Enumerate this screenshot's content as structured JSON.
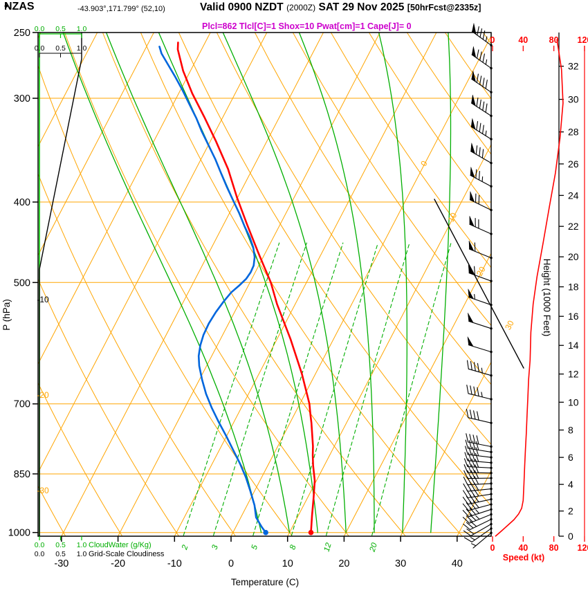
{
  "header": {
    "bullet": "•",
    "station": "NZAS",
    "coords": "-43.903°,171.799° (52,10)",
    "valid_prefix": "Valid 0900 NZDT",
    "valid_z": "(2000Z)",
    "valid_date": "SAT 29 Nov 2025",
    "fcst": "[50hrFcst@2335z]",
    "params": "Plcl=862 Tlcl[C]=1 Shox=10 Pwat[cm]=1 Cape[J]= 0"
  },
  "colors": {
    "orange": "#FFA500",
    "green": "#00AE00",
    "bright_green": "#00C800",
    "red": "#FF0000",
    "blue": "#0066DD",
    "magenta": "#CC00CC",
    "black": "#000000"
  },
  "chart_data": {
    "type": "skewt_log_p_sounding",
    "axes": {
      "pressure_hpa": {
        "label": "P (hPa)",
        "ticks": [
          250,
          300,
          400,
          500,
          700,
          850,
          1000
        ],
        "gridlines": [
          300,
          400,
          500,
          700,
          850,
          1000
        ]
      },
      "temperature_c": {
        "label": "Temperature (C)",
        "ticks": [
          -30,
          -20,
          -10,
          0,
          10,
          20,
          30,
          40
        ]
      },
      "height_kft": {
        "label": "Height (1000 Feet)",
        "ticks": [
          0,
          2,
          4,
          6,
          8,
          10,
          12,
          14,
          16,
          18,
          20,
          22,
          24,
          26,
          28,
          30,
          32
        ]
      },
      "speed_kt": {
        "label": "Speed (kt)",
        "ticks": [
          0,
          40,
          80,
          120
        ]
      },
      "cloudwater": {
        "label": "CloudWater (g/Kg)",
        "ticks": [
          "0.0",
          "0.5",
          "1.0"
        ]
      },
      "cloudiness": {
        "label": "Grid-Scale Cloudiness",
        "ticks": [
          "0.0",
          "0.5",
          "1.0"
        ]
      }
    },
    "isotherm_labels": [
      0,
      10,
      20,
      30
    ],
    "dry_adiabat_labels": [
      -10,
      -20,
      -30
    ],
    "mixing_ratio_lines": [
      2,
      3,
      5,
      8,
      12,
      20
    ],
    "moist_adiabats": [
      5,
      10,
      15,
      20,
      25,
      30,
      35
    ],
    "temperature_profile": [
      [
        1000,
        13.8
      ],
      [
        953,
        12.4
      ],
      [
        909,
        11.1
      ],
      [
        866,
        9.7
      ],
      [
        830,
        8.0
      ],
      [
        807,
        7.0
      ],
      [
        787,
        6.2
      ],
      [
        738,
        3.8
      ],
      [
        722,
        2.9
      ],
      [
        700,
        1.7
      ],
      [
        644,
        -2.4
      ],
      [
        585,
        -7.6
      ],
      [
        531,
        -13.2
      ],
      [
        500,
        -16.3
      ],
      [
        460,
        -21.3
      ],
      [
        426,
        -25.8
      ],
      [
        395,
        -30.1
      ],
      [
        365,
        -34.3
      ],
      [
        338,
        -39.0
      ],
      [
        316,
        -43.3
      ],
      [
        296,
        -47.6
      ],
      [
        278,
        -51.3
      ],
      [
        262,
        -54.2
      ],
      [
        257,
        -54.8
      ]
    ],
    "dewpoint_profile": [
      [
        1000,
        5.8
      ],
      [
        985,
        4.6
      ],
      [
        959,
        2.7
      ],
      [
        927,
        1.3
      ],
      [
        892,
        -0.7
      ],
      [
        858,
        -2.8
      ],
      [
        826,
        -5.1
      ],
      [
        795,
        -7.6
      ],
      [
        765,
        -10.1
      ],
      [
        736,
        -12.7
      ],
      [
        708,
        -15.2
      ],
      [
        681,
        -17.5
      ],
      [
        655,
        -19.5
      ],
      [
        630,
        -21.3
      ],
      [
        613,
        -22.3
      ],
      [
        595,
        -23.0
      ],
      [
        578,
        -23.4
      ],
      [
        560,
        -23.5
      ],
      [
        543,
        -23.3
      ],
      [
        527,
        -22.9
      ],
      [
        514,
        -22.4
      ],
      [
        504,
        -21.6
      ],
      [
        495,
        -21.0
      ],
      [
        486,
        -20.8
      ],
      [
        477,
        -20.9
      ],
      [
        466,
        -21.5
      ],
      [
        454,
        -22.6
      ],
      [
        441,
        -24.2
      ],
      [
        428,
        -26.1
      ],
      [
        413,
        -28.2
      ],
      [
        399,
        -30.4
      ],
      [
        384,
        -32.8
      ],
      [
        369,
        -35.2
      ],
      [
        355,
        -37.5
      ],
      [
        342,
        -39.9
      ],
      [
        329,
        -42.4
      ],
      [
        317,
        -44.6
      ],
      [
        305,
        -47.1
      ],
      [
        293,
        -49.7
      ],
      [
        282,
        -52.3
      ],
      [
        273,
        -54.6
      ],
      [
        265,
        -56.7
      ],
      [
        260,
        -57.7
      ]
    ],
    "wind_barbs": [
      [
        259,
        85,
        306
      ],
      [
        276,
        85,
        305
      ],
      [
        295,
        90,
        304
      ],
      [
        315,
        90,
        303
      ],
      [
        336,
        85,
        302
      ],
      [
        359,
        80,
        300
      ],
      [
        383,
        75,
        298
      ],
      [
        409,
        72,
        296
      ],
      [
        437,
        68,
        294
      ],
      [
        467,
        62,
        292
      ],
      [
        498,
        58,
        290
      ],
      [
        532,
        54,
        289
      ],
      [
        568,
        50,
        288
      ],
      [
        606,
        48,
        287
      ],
      [
        647,
        45,
        286
      ],
      [
        691,
        43,
        284
      ],
      [
        738,
        42,
        283
      ],
      [
        788,
        41,
        281
      ],
      [
        800,
        40,
        279
      ],
      [
        812,
        40,
        277
      ],
      [
        824,
        40,
        275
      ],
      [
        836,
        40,
        273
      ],
      [
        848,
        40,
        271
      ],
      [
        860,
        40,
        269
      ],
      [
        873,
        40,
        267
      ],
      [
        886,
        40,
        264
      ],
      [
        899,
        40,
        261
      ],
      [
        912,
        39,
        258
      ],
      [
        925,
        38,
        255
      ],
      [
        938,
        36,
        252
      ],
      [
        951,
        33,
        248
      ],
      [
        964,
        28,
        244
      ],
      [
        977,
        22,
        240
      ],
      [
        989,
        14,
        235
      ],
      [
        1001,
        6,
        230
      ]
    ],
    "speed_profile": [
      [
        1010,
        4
      ],
      [
        995,
        12
      ],
      [
        980,
        20
      ],
      [
        965,
        28
      ],
      [
        950,
        34
      ],
      [
        935,
        38
      ],
      [
        915,
        40
      ],
      [
        874,
        41
      ],
      [
        830,
        42
      ],
      [
        793,
        43
      ],
      [
        760,
        44
      ],
      [
        722,
        45
      ],
      [
        690,
        46
      ],
      [
        655,
        47
      ],
      [
        620,
        49
      ],
      [
        574,
        50
      ],
      [
        531,
        53
      ],
      [
        492,
        58
      ],
      [
        448,
        66
      ],
      [
        406,
        74
      ],
      [
        369,
        82
      ],
      [
        335,
        88
      ],
      [
        304,
        92
      ],
      [
        277,
        90
      ],
      [
        262,
        86
      ],
      [
        255,
        84
      ]
    ],
    "cloudiness_profile": [
      [
        1010,
        0
      ],
      [
        482,
        0
      ],
      [
        269,
        1
      ],
      [
        250,
        1
      ]
    ],
    "cloudwater_profile": [
      [
        1010,
        0
      ],
      [
        250,
        0
      ]
    ]
  }
}
